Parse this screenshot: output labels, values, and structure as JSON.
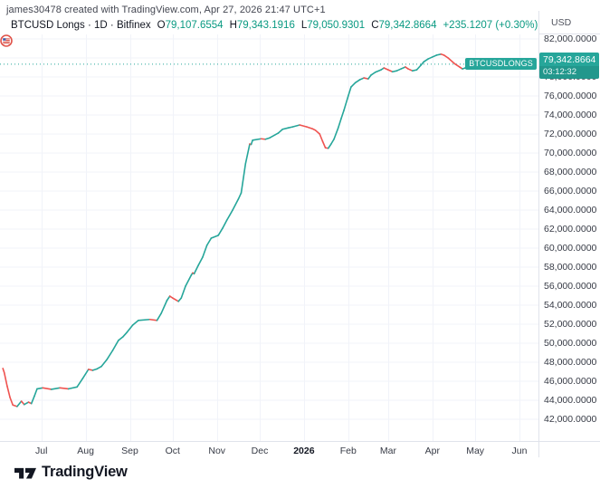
{
  "header": {
    "attribution": "james30478 created with TradingView.com, Apr 27, 2026 21:47 UTC+1",
    "symbol_title": "BTCUSD Longs · 1D · Bitfinex",
    "o_label": "O",
    "o_value": "79,107.6554",
    "h_label": "H",
    "h_value": "79,343.1916",
    "l_label": "L",
    "l_value": "79,050.9301",
    "c_label": "C",
    "c_value": "79,342.8664",
    "change": "+235.1207 (+0.30%)"
  },
  "price_label": {
    "badge": "BTCUSDLONGS",
    "price": "79,342.8664",
    "countdown": "03:12:32"
  },
  "colors": {
    "up": "#26a69a",
    "up_text": "#089981",
    "down": "#ef5350",
    "grid": "#f1f3f9",
    "axis_border": "#e0e3eb",
    "text": "#131722",
    "muted": "#363a45"
  },
  "logo": {
    "text": "TradingView"
  },
  "event_icon": {
    "name": "us-economic-event-flag"
  },
  "chart_data": {
    "type": "line",
    "title": "BTCUSD Longs · 1D · Bitfinex",
    "currency": "USD",
    "xlabel": "",
    "ylabel": "USD",
    "grid": true,
    "legend": "none",
    "x_range": [
      "2025-06-02",
      "2026-06-30"
    ],
    "ylim": [
      41600,
      82400
    ],
    "last_price": 79342.8664,
    "y_ticks": [
      {
        "value": 82000,
        "label": "82,000.0000"
      },
      {
        "value": 80000,
        "label": "80,000.0000"
      },
      {
        "value": 78000,
        "label": "78,000.0000"
      },
      {
        "value": 76000,
        "label": "76,000.0000"
      },
      {
        "value": 74000,
        "label": "74,000.0000"
      },
      {
        "value": 72000,
        "label": "72,000.0000"
      },
      {
        "value": 70000,
        "label": "70,000.0000"
      },
      {
        "value": 68000,
        "label": "68,000.0000"
      },
      {
        "value": 66000,
        "label": "66,000.0000"
      },
      {
        "value": 64000,
        "label": "64,000.0000"
      },
      {
        "value": 62000,
        "label": "62,000.0000"
      },
      {
        "value": 60000,
        "label": "60,000.0000"
      },
      {
        "value": 58000,
        "label": "58,000.0000"
      },
      {
        "value": 56000,
        "label": "56,000.0000"
      },
      {
        "value": 54000,
        "label": "54,000.0000"
      },
      {
        "value": 52000,
        "label": "52,000.0000"
      },
      {
        "value": 50000,
        "label": "50,000.0000"
      },
      {
        "value": 48000,
        "label": "48,000.0000"
      },
      {
        "value": 46000,
        "label": "46,000.0000"
      },
      {
        "value": 44000,
        "label": "44,000.0000"
      },
      {
        "value": 42000,
        "label": "42,000.0000"
      }
    ],
    "x_ticks": [
      {
        "date": "2025-07-01",
        "label": "Jul"
      },
      {
        "date": "2025-08-01",
        "label": "Aug"
      },
      {
        "date": "2025-09-01",
        "label": "Sep"
      },
      {
        "date": "2025-10-01",
        "label": "Oct"
      },
      {
        "date": "2025-11-01",
        "label": "Nov"
      },
      {
        "date": "2025-12-01",
        "label": "Dec"
      },
      {
        "date": "2026-01-01",
        "label": "2026",
        "bold": true
      },
      {
        "date": "2026-02-01",
        "label": "Feb"
      },
      {
        "date": "2026-03-01",
        "label": "Mar"
      },
      {
        "date": "2026-04-01",
        "label": "Apr"
      },
      {
        "date": "2026-05-01",
        "label": "May"
      },
      {
        "date": "2026-06-01",
        "label": "Jun"
      }
    ],
    "series": [
      {
        "name": "BTCUSDLONGS",
        "style": "line",
        "points": [
          [
            "2025-06-04",
            47350
          ],
          [
            "2025-06-05",
            46900
          ],
          [
            "2025-06-07",
            45500
          ],
          [
            "2025-06-09",
            44300
          ],
          [
            "2025-06-11",
            43500
          ],
          [
            "2025-06-14",
            43350
          ],
          [
            "2025-06-17",
            43900
          ],
          [
            "2025-06-19",
            43550
          ],
          [
            "2025-06-22",
            43800
          ],
          [
            "2025-06-24",
            43650
          ],
          [
            "2025-06-26",
            44400
          ],
          [
            "2025-06-28",
            45200
          ],
          [
            "2025-07-02",
            45300
          ],
          [
            "2025-07-08",
            45150
          ],
          [
            "2025-07-14",
            45300
          ],
          [
            "2025-07-20",
            45200
          ],
          [
            "2025-07-26",
            45400
          ],
          [
            "2025-07-30",
            46300
          ],
          [
            "2025-08-03",
            47250
          ],
          [
            "2025-08-06",
            47150
          ],
          [
            "2025-08-09",
            47300
          ],
          [
            "2025-08-12",
            47550
          ],
          [
            "2025-08-16",
            48300
          ],
          [
            "2025-08-20",
            49250
          ],
          [
            "2025-08-24",
            50300
          ],
          [
            "2025-08-27",
            50650
          ],
          [
            "2025-08-30",
            51150
          ],
          [
            "2025-09-03",
            51900
          ],
          [
            "2025-09-07",
            52400
          ],
          [
            "2025-09-15",
            52500
          ],
          [
            "2025-09-20",
            52400
          ],
          [
            "2025-09-23",
            53150
          ],
          [
            "2025-09-27",
            54500
          ],
          [
            "2025-09-29",
            54950
          ],
          [
            "2025-10-01",
            54750
          ],
          [
            "2025-10-05",
            54400
          ],
          [
            "2025-10-07",
            54750
          ],
          [
            "2025-10-10",
            56000
          ],
          [
            "2025-10-14",
            57150
          ],
          [
            "2025-10-15",
            57400
          ],
          [
            "2025-10-16",
            57300
          ],
          [
            "2025-10-19",
            58200
          ],
          [
            "2025-10-22",
            59050
          ],
          [
            "2025-10-25",
            60300
          ],
          [
            "2025-10-28",
            61050
          ],
          [
            "2025-11-02",
            61350
          ],
          [
            "2025-11-05",
            62100
          ],
          [
            "2025-11-08",
            62950
          ],
          [
            "2025-11-12",
            64000
          ],
          [
            "2025-11-16",
            65150
          ],
          [
            "2025-11-18",
            65800
          ],
          [
            "2025-11-21",
            68850
          ],
          [
            "2025-11-24",
            70950
          ],
          [
            "2025-11-25",
            70900
          ],
          [
            "2025-11-26",
            71350
          ],
          [
            "2025-12-02",
            71500
          ],
          [
            "2025-12-05",
            71450
          ],
          [
            "2025-12-08",
            71600
          ],
          [
            "2025-12-14",
            72100
          ],
          [
            "2025-12-17",
            72500
          ],
          [
            "2025-12-21",
            72650
          ],
          [
            "2025-12-24",
            72750
          ],
          [
            "2025-12-29",
            72950
          ],
          [
            "2026-01-03",
            72750
          ],
          [
            "2026-01-07",
            72550
          ],
          [
            "2026-01-09",
            72400
          ],
          [
            "2026-01-12",
            72000
          ],
          [
            "2026-01-14",
            71250
          ],
          [
            "2026-01-16",
            70550
          ],
          [
            "2026-01-18",
            70500
          ],
          [
            "2026-01-20",
            70950
          ],
          [
            "2026-01-22",
            71450
          ],
          [
            "2026-01-25",
            72650
          ],
          [
            "2026-01-27",
            73600
          ],
          [
            "2026-01-29",
            74500
          ],
          [
            "2026-02-01",
            76000
          ],
          [
            "2026-02-03",
            76950
          ],
          [
            "2026-02-06",
            77400
          ],
          [
            "2026-02-09",
            77700
          ],
          [
            "2026-02-12",
            77900
          ],
          [
            "2026-02-15",
            77800
          ],
          [
            "2026-02-17",
            78200
          ],
          [
            "2026-02-20",
            78500
          ],
          [
            "2026-02-24",
            78750
          ],
          [
            "2026-02-26",
            78950
          ],
          [
            "2026-03-01",
            78750
          ],
          [
            "2026-03-04",
            78550
          ],
          [
            "2026-03-07",
            78650
          ],
          [
            "2026-03-10",
            78850
          ],
          [
            "2026-03-13",
            79050
          ],
          [
            "2026-03-15",
            78850
          ],
          [
            "2026-03-18",
            78650
          ],
          [
            "2026-03-21",
            78750
          ],
          [
            "2026-03-24",
            79250
          ],
          [
            "2026-03-26",
            79600
          ],
          [
            "2026-03-29",
            79900
          ],
          [
            "2026-04-01",
            80100
          ],
          [
            "2026-04-04",
            80300
          ],
          [
            "2026-04-07",
            80400
          ],
          [
            "2026-04-09",
            80300
          ],
          [
            "2026-04-12",
            80000
          ],
          [
            "2026-04-15",
            79600
          ],
          [
            "2026-04-17",
            79350
          ],
          [
            "2026-04-20",
            79050
          ],
          [
            "2026-04-22",
            78850
          ],
          [
            "2026-04-24",
            78950
          ],
          [
            "2026-04-27",
            79342.8664
          ]
        ]
      }
    ]
  }
}
